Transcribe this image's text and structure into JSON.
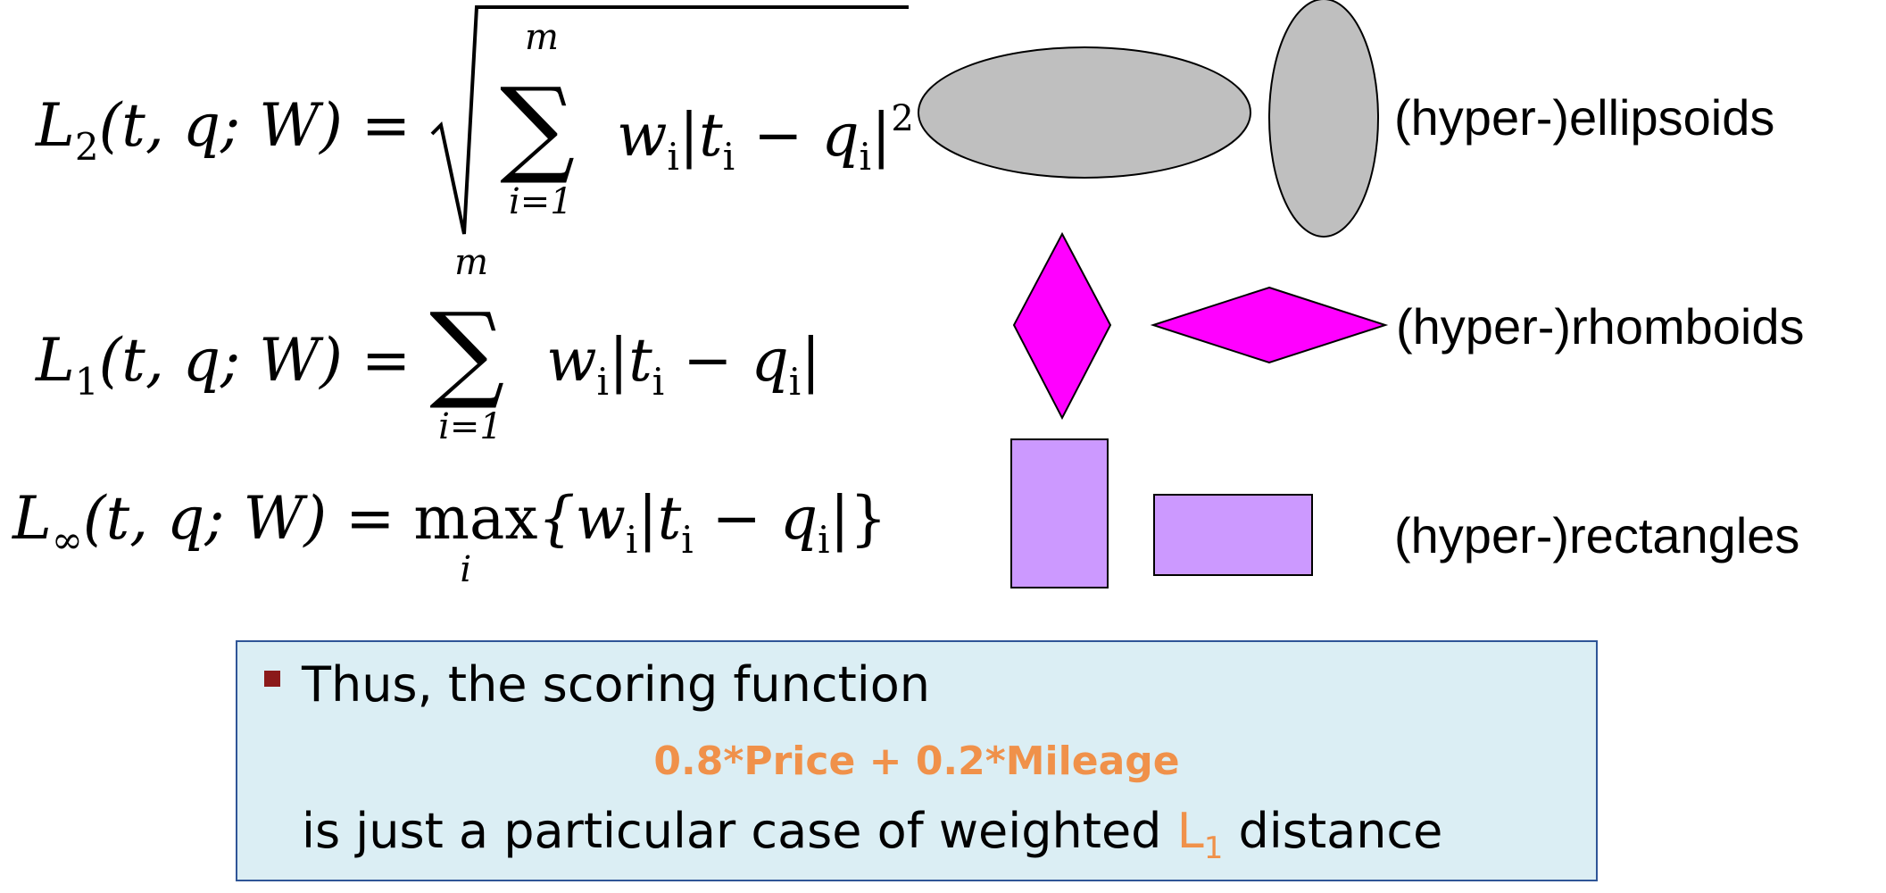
{
  "formulas": {
    "l2": {
      "lhs_letter": "L",
      "lhs_sub": "2",
      "lhs_args": "(t, q; W) =",
      "sum_top": "m",
      "sum_symbol": "∑",
      "sum_bottom": "i=1",
      "body": "w",
      "body_sub": "i",
      "body_rest": "|t",
      "body_sub2": "i",
      "body_minus": " − q",
      "body_sub3": "i",
      "body_end": "|",
      "body_sup": "2"
    },
    "l1": {
      "lhs_letter": "L",
      "lhs_sub": "1",
      "lhs_args": "(t, q; W) =",
      "sum_top": "m",
      "sum_symbol": "∑",
      "sum_bottom": "i=1",
      "body": "w",
      "body_sub": "i",
      "body_rest": "|t",
      "body_sub2": "i",
      "body_minus": " − q",
      "body_sub3": "i",
      "body_end": "|"
    },
    "linf": {
      "lhs_letter": "L",
      "lhs_sub": "∞",
      "lhs_args": "(t, q; W) =",
      "max_word": "max",
      "max_sub": "i",
      "body_open": "{w",
      "body_sub": "i",
      "body_rest": "|t",
      "body_sub2": "i",
      "body_minus": " − q",
      "body_sub3": "i",
      "body_end": "|}"
    }
  },
  "shape_labels": {
    "ellipsoids": "(hyper-)ellipsoids",
    "rhomboids": "(hyper-)rhomboids",
    "rectangles": "(hyper-)rectangles"
  },
  "colors": {
    "ellipse_fill": "#bfbfbf",
    "rhombus_fill": "#ff00ff",
    "rect_fill": "#cc99ff",
    "box_bg": "#dbeef4",
    "box_border": "#2f5597",
    "bullet": "#8b1a1a",
    "highlight": "#f0914a"
  },
  "note": {
    "line1": "Thus, the scoring function",
    "formula": "0.8*Price + 0.2*Mileage",
    "line3_pre": "is just a particular case of weighted ",
    "line3_hl": "L",
    "line3_hl_sub": "1",
    "line3_post": " distance"
  }
}
